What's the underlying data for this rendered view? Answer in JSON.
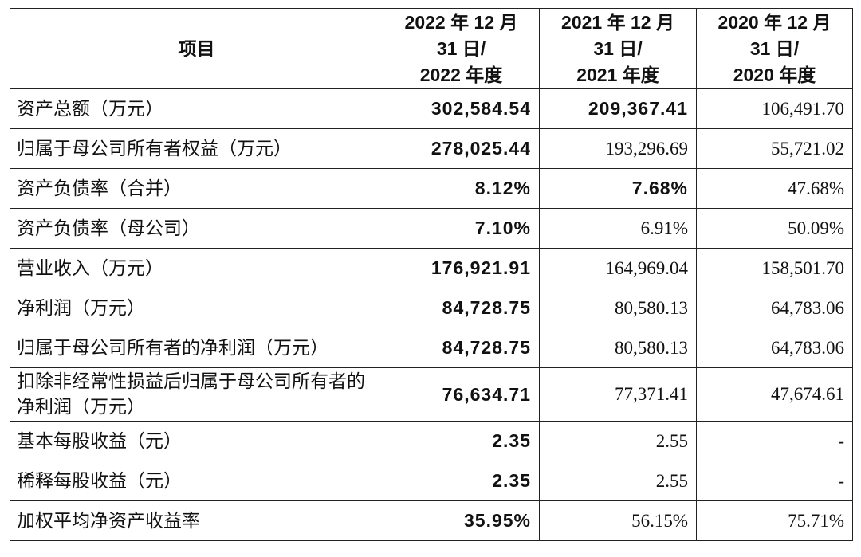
{
  "table": {
    "header": [
      [
        "项目"
      ],
      [
        "2022 年 12 月",
        "31 日/",
        "2022 年度"
      ],
      [
        "2021 年 12 月",
        "31 日/",
        "2021 年度"
      ],
      [
        "2020 年 12 月",
        "31 日/",
        "2020 年度"
      ]
    ],
    "rows": [
      [
        "资产总额（万元）",
        "302,584.54",
        "209,367.41",
        "106,491.70"
      ],
      [
        "归属于母公司所有者权益（万元）",
        "278,025.44",
        "193,296.69",
        "55,721.02"
      ],
      [
        "资产负债率（合并）",
        "8.12%",
        "7.68%",
        "47.68%"
      ],
      [
        "资产负债率（母公司）",
        "7.10%",
        "6.91%",
        "50.09%"
      ],
      [
        "营业收入（万元）",
        "176,921.91",
        "164,969.04",
        "158,501.70"
      ],
      [
        "净利润（万元）",
        "84,728.75",
        "80,580.13",
        "64,783.06"
      ],
      [
        "归属于母公司所有者的净利润（万元）",
        "84,728.75",
        "80,580.13",
        "64,783.06"
      ],
      [
        "扣除非经常性损益后归属于母公司所有者的净利润（万元）",
        "76,634.71",
        "77,371.41",
        "47,674.61"
      ],
      [
        "基本每股收益（元）",
        "2.35",
        "2.55",
        "-"
      ],
      [
        "稀释每股收益（元）",
        "2.35",
        "2.55",
        "-"
      ],
      [
        "加权平均净资产收益率",
        "35.95%",
        "56.15%",
        "75.71%"
      ]
    ]
  }
}
